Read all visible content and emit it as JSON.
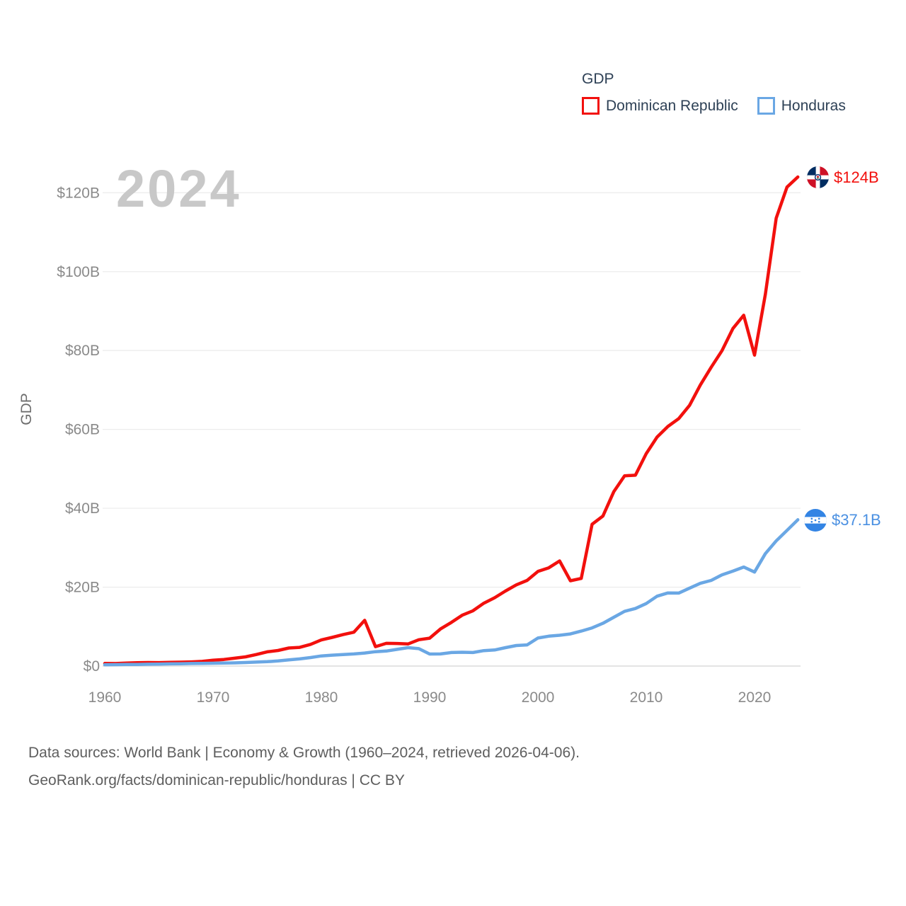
{
  "legend": {
    "title": "GDP",
    "items": [
      {
        "label": "Dominican Republic",
        "color": "#f2100d"
      },
      {
        "label": "Honduras",
        "color": "#6aa7e4"
      }
    ]
  },
  "watermark": "2024",
  "end_labels": [
    {
      "series": "Dominican Republic",
      "value": "$124B",
      "color": "#f2100d",
      "flag_icon": "dominican-republic-flag"
    },
    {
      "series": "Honduras",
      "value": "$37.1B",
      "color": "#4a90e2",
      "flag_icon": "honduras-flag"
    }
  ],
  "footer": {
    "line1": "Data sources: World Bank | Economy & Growth (1960–2024, retrieved 2026-04-06).",
    "line2": "GeoRank.org/facts/dominican-republic/honduras | CC BY"
  },
  "chart_data": {
    "type": "line",
    "title": "GDP",
    "xlabel": "",
    "ylabel": "GDP",
    "xlim": [
      1960,
      2024
    ],
    "ylim": [
      0,
      130
    ],
    "grid": true,
    "legend_position": "top-right",
    "xticks": [
      1960,
      1970,
      1980,
      1990,
      2000,
      2010,
      2020
    ],
    "yticks": [
      0,
      20,
      40,
      60,
      80,
      100,
      120
    ],
    "ytick_labels": [
      "$0",
      "$20B",
      "$40B",
      "$60B",
      "$80B",
      "$100B",
      "$120B"
    ],
    "x": [
      1960,
      1961,
      1962,
      1963,
      1964,
      1965,
      1966,
      1967,
      1968,
      1969,
      1970,
      1971,
      1972,
      1973,
      1974,
      1975,
      1976,
      1977,
      1978,
      1979,
      1980,
      1981,
      1982,
      1983,
      1984,
      1985,
      1986,
      1987,
      1988,
      1989,
      1990,
      1991,
      1992,
      1993,
      1994,
      1995,
      1996,
      1997,
      1998,
      1999,
      2000,
      2001,
      2002,
      2003,
      2004,
      2005,
      2006,
      2007,
      2008,
      2009,
      2010,
      2011,
      2012,
      2013,
      2014,
      2015,
      2016,
      2017,
      2018,
      2019,
      2020,
      2021,
      2022,
      2023,
      2024
    ],
    "series": [
      {
        "name": "Dominican Republic",
        "color": "#f2100d",
        "unit": "billion USD",
        "values": [
          0.67,
          0.64,
          0.76,
          0.84,
          0.89,
          0.88,
          0.93,
          0.99,
          1.06,
          1.18,
          1.49,
          1.67,
          1.99,
          2.34,
          2.92,
          3.6,
          3.95,
          4.58,
          4.73,
          5.5,
          6.63,
          7.27,
          7.96,
          8.58,
          11.59,
          4.91,
          5.76,
          5.72,
          5.6,
          6.67,
          7.07,
          9.4,
          11.05,
          12.88,
          14.01,
          15.94,
          17.32,
          19.02,
          20.59,
          21.71,
          24.0,
          24.91,
          26.65,
          21.62,
          22.21,
          35.94,
          38.02,
          44.18,
          48.24,
          48.38,
          53.86,
          58.05,
          60.74,
          62.73,
          66.1,
          71.27,
          75.76,
          79.99,
          85.56,
          88.94,
          78.84,
          94.24,
          113.54,
          121.44,
          124.0
        ]
      },
      {
        "name": "Honduras",
        "color": "#6aa7e4",
        "unit": "billion USD",
        "values": [
          0.34,
          0.36,
          0.39,
          0.41,
          0.46,
          0.51,
          0.55,
          0.58,
          0.64,
          0.67,
          0.72,
          0.75,
          0.8,
          0.9,
          1.0,
          1.11,
          1.29,
          1.58,
          1.82,
          2.16,
          2.57,
          2.77,
          2.9,
          3.07,
          3.3,
          3.64,
          3.81,
          4.24,
          4.66,
          4.41,
          3.05,
          3.07,
          3.42,
          3.5,
          3.43,
          3.91,
          4.07,
          4.66,
          5.2,
          5.37,
          7.1,
          7.57,
          7.81,
          8.14,
          8.87,
          9.67,
          10.84,
          12.36,
          13.88,
          14.59,
          15.84,
          17.71,
          18.53,
          18.5,
          19.76,
          20.98,
          21.72,
          23.14,
          24.07,
          25.1,
          23.83,
          28.49,
          31.72,
          34.4,
          37.1
        ]
      }
    ]
  }
}
